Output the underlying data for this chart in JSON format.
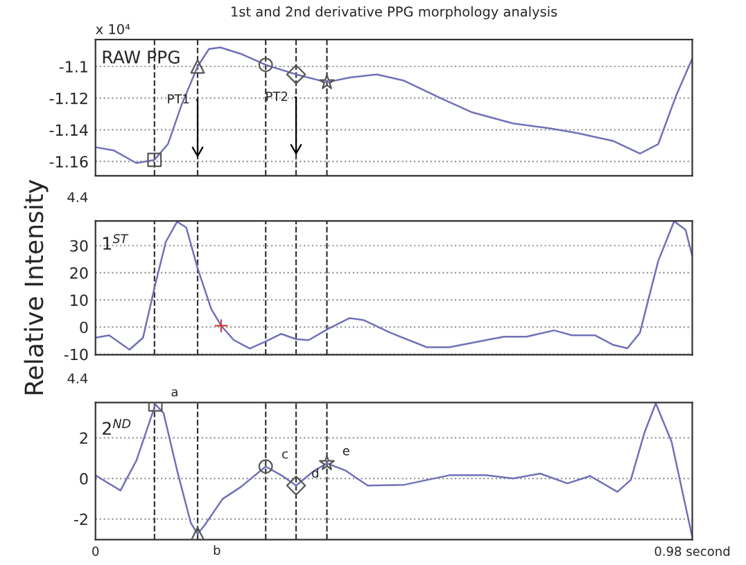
{
  "chart_data": [
    {
      "type": "line",
      "title": "1st and 2nd derivative PPG morphology analysis",
      "xlim": [
        0,
        0.98
      ],
      "ylim": [
        -1.169,
        -1.083
      ],
      "yticks": [
        -1.16,
        -1.14,
        -1.12,
        -1.1
      ],
      "grid": "y",
      "tick_labels": "y",
      "annotations": [
        "x 10⁴",
        "RAW PPG",
        {
          "text": "PT1",
          "x": 0.1677,
          "y": -1.1576
        },
        {
          "text": "PT2",
          "x": 0.3294,
          "y": -1.156
        }
      ],
      "ref_lines": [
        {
          "axis": "x",
          "value": 0.0969,
          "color": "#333333",
          "line_style": "dashed"
        },
        {
          "axis": "x",
          "value": 0.1677,
          "color": "#333333",
          "line_style": "dashed"
        },
        {
          "axis": "x",
          "value": 0.2795,
          "color": "#333333",
          "line_style": "dashed"
        },
        {
          "axis": "x",
          "value": 0.3294,
          "color": "#333333",
          "line_style": "dashed"
        },
        {
          "axis": "x",
          "value": 0.38,
          "color": "#333333",
          "line_style": "dashed"
        }
      ],
      "series": [
        {
          "color": "#7070b8",
          "marker": "none",
          "x": [
            0,
            0.0298,
            0.067,
            0.0969,
            0.119,
            0.1416,
            0.1677,
            0.1863,
            0.205,
            0.2385,
            0.2795,
            0.3294,
            0.38,
            0.4173,
            0.462,
            0.5068,
            0.5664,
            0.6186,
            0.6856,
            0.7452,
            0.79,
            0.8496,
            0.8943,
            0.9241,
            0.9539,
            0.98
          ],
          "values": [
            -1.151,
            -1.153,
            -1.161,
            -1.159,
            -1.149,
            -1.124,
            -1.1,
            -1.089,
            -1.088,
            -1.092,
            -1.099,
            -1.105,
            -1.11,
            -1.107,
            -1.105,
            -1.109,
            -1.12,
            -1.129,
            -1.136,
            -1.139,
            -1.142,
            -1.147,
            -1.155,
            -1.149,
            -1.118,
            -1.095
          ]
        },
        {
          "type": "scatter",
          "color": "#555555",
          "marker": "square",
          "x": [
            0.0969
          ],
          "values": [
            -1.159
          ]
        },
        {
          "type": "scatter",
          "color": "#555555",
          "marker": "triangle",
          "x": [
            0.1677
          ],
          "values": [
            -1.1
          ]
        },
        {
          "type": "scatter",
          "color": "#555555",
          "marker": "circle",
          "x": [
            0.2795
          ],
          "values": [
            -1.099
          ]
        },
        {
          "type": "scatter",
          "color": "#555555",
          "marker": "diamond",
          "x": [
            0.3294
          ],
          "values": [
            -1.105
          ]
        },
        {
          "type": "scatter",
          "color": "#555555",
          "marker": "star",
          "x": [
            0.38
          ],
          "values": [
            -1.11
          ]
        }
      ]
    },
    {
      "type": "line",
      "ylabel": "Relative Intensity",
      "xlim": [
        0,
        0.98
      ],
      "ylim": [
        -10.2,
        39.1
      ],
      "yticks": [
        -10,
        0,
        10,
        20,
        30
      ],
      "grid": "y",
      "tick_labels": "y",
      "annotations": [
        "4.4",
        "1$^{ST}$"
      ],
      "ref_lines": [
        {
          "axis": "x",
          "value": 0.0969,
          "color": "#333333",
          "line_style": "dashed"
        },
        {
          "axis": "x",
          "value": 0.1677,
          "color": "#333333",
          "line_style": "dashed"
        },
        {
          "axis": "x",
          "value": 0.2795,
          "color": "#333333",
          "line_style": "dashed"
        },
        {
          "axis": "x",
          "value": 0.3294,
          "color": "#333333",
          "line_style": "dashed"
        },
        {
          "axis": "x",
          "value": 0.38,
          "color": "#333333",
          "line_style": "dashed"
        }
      ],
      "series": [
        {
          "color": "#7070b8",
          "marker": "none",
          "x": [
            0,
            0.0224,
            0.0559,
            0.078,
            0.097,
            0.1155,
            0.134,
            0.149,
            0.1677,
            0.19,
            0.2064,
            0.2273,
            0.2534,
            0.2795,
            0.305,
            0.3294,
            0.35,
            0.3816,
            0.4173,
            0.44,
            0.4844,
            0.544,
            0.581,
            0.641,
            0.671,
            0.708,
            0.753,
            0.7825,
            0.82,
            0.8496,
            0.8734,
            0.894,
            0.924,
            0.9502,
            0.969,
            0.98
          ],
          "values": [
            -3.9,
            -3.0,
            -8.3,
            -3.9,
            14.6,
            31.4,
            38.8,
            36.7,
            21.7,
            6.7,
            0.5,
            -4.8,
            -7.9,
            -5.3,
            -2.5,
            -4.4,
            -4.8,
            -0.7,
            3.3,
            2.6,
            -2.1,
            -7.4,
            -7.4,
            -4.8,
            -3.5,
            -3.5,
            -1.2,
            -3.0,
            -3.0,
            -6.5,
            -7.8,
            -2.1,
            24.3,
            39.0,
            35.8,
            26.1
          ]
        },
        {
          "type": "scatter",
          "color": "#d04040",
          "marker": "cross",
          "x": [
            0.2064
          ],
          "values": [
            0.5
          ]
        }
      ]
    },
    {
      "type": "line",
      "xlim": [
        0,
        0.98
      ],
      "ylim": [
        -3.01,
        3.74
      ],
      "yticks": [
        -2,
        0,
        2
      ],
      "xticks": [
        {
          "value": 0,
          "label": "0"
        },
        {
          "value": 0.98,
          "label": "0.98 second"
        }
      ],
      "grid": "y",
      "annotations": [
        "4.4",
        "2$^{ND}$",
        {
          "text": "a",
          "x": 0.0984,
          "y": 3.65
        },
        {
          "text": "b",
          "x": 0.1677,
          "y": -2.73
        },
        {
          "text": "c",
          "x": 0.2795,
          "y": 0.59
        },
        {
          "text": "d",
          "x": 0.3294,
          "y": -0.35
        },
        {
          "text": "e",
          "x": 0.38,
          "y": 0.75
        }
      ],
      "ref_lines": [
        {
          "axis": "x",
          "value": 0.0969,
          "color": "#333333",
          "line_style": "dashed"
        },
        {
          "axis": "x",
          "value": 0.1677,
          "color": "#333333",
          "line_style": "dashed"
        },
        {
          "axis": "x",
          "value": 0.2795,
          "color": "#333333",
          "line_style": "dashed"
        },
        {
          "axis": "x",
          "value": 0.3294,
          "color": "#333333",
          "line_style": "dashed"
        },
        {
          "axis": "x",
          "value": 0.38,
          "color": "#333333",
          "line_style": "dashed"
        }
      ],
      "series": [
        {
          "color": "#7070b8",
          "marker": "none",
          "x": [
            0,
            0.0149,
            0.041,
            0.067,
            0.0857,
            0.0984,
            0.1118,
            0.134,
            0.1565,
            0.1677,
            0.179,
            0.2087,
            0.2385,
            0.2795,
            0.305,
            0.3294,
            0.3577,
            0.38,
            0.41,
            0.4471,
            0.507,
            0.581,
            0.641,
            0.6856,
            0.7303,
            0.775,
            0.8123,
            0.857,
            0.879,
            0.9017,
            0.92,
            0.946,
            0.98
          ],
          "values": [
            0.16,
            -0.12,
            -0.59,
            0.87,
            2.52,
            3.65,
            3.22,
            0.4,
            -2.19,
            -2.73,
            -2.31,
            -1.01,
            -0.42,
            0.59,
            0.16,
            -0.35,
            0.35,
            0.75,
            0.4,
            -0.35,
            -0.31,
            0.16,
            0.16,
            0,
            0.24,
            -0.24,
            0.12,
            -0.66,
            -0.07,
            2.28,
            3.7,
            1.81,
            -2.89
          ]
        },
        {
          "type": "scatter",
          "color": "#555555",
          "marker": "square",
          "x": [
            0.0984
          ],
          "values": [
            3.65
          ]
        },
        {
          "type": "scatter",
          "color": "#555555",
          "marker": "triangle",
          "x": [
            0.1677
          ],
          "values": [
            -2.73
          ]
        },
        {
          "type": "scatter",
          "color": "#555555",
          "marker": "circle",
          "x": [
            0.2795
          ],
          "values": [
            0.59
          ]
        },
        {
          "type": "scatter",
          "color": "#555555",
          "marker": "diamond",
          "x": [
            0.3294
          ],
          "values": [
            -0.35
          ]
        },
        {
          "type": "scatter",
          "color": "#555555",
          "marker": "star",
          "x": [
            0.38
          ],
          "values": [
            0.75
          ]
        }
      ]
    }
  ]
}
